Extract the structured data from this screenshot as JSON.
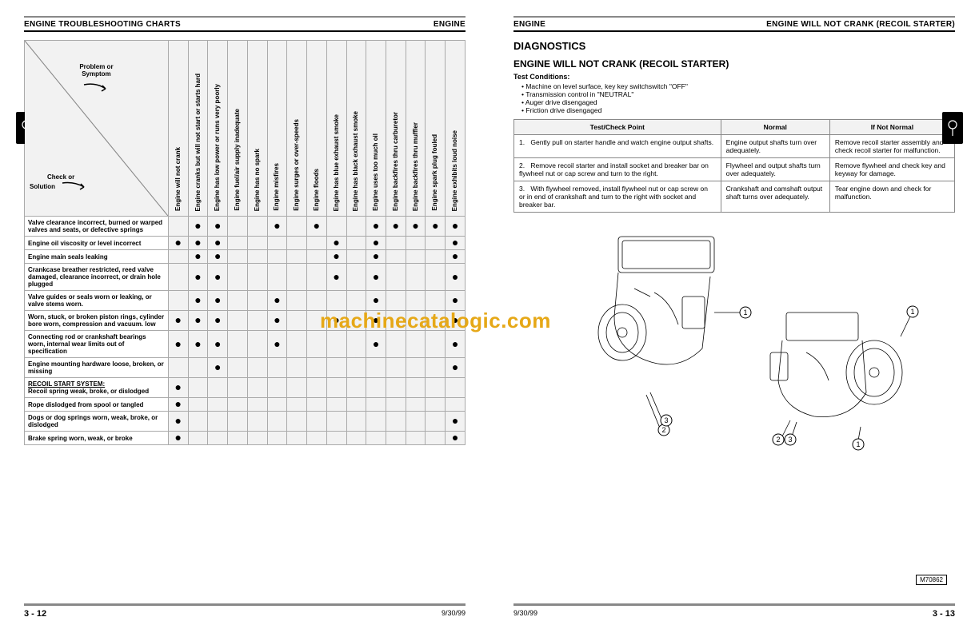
{
  "watermark": "machinecatalogic.com",
  "leftPage": {
    "headerLeft": "ENGINE TROUBLESHOOTING CHARTS",
    "headerRight": "ENGINE",
    "footerPage": "3 - 12",
    "footerDate": "9/30/99",
    "diagTopLabel": "Problem or\nSymptom",
    "diagBottomLabel": "Check or\nSolution",
    "columns": [
      "Engine will not crank",
      "Engine cranks but will not start or starts hard",
      "Engine has low power or runs very poorly",
      "Engine fuel/air supply inadequate",
      "Engine has no spark",
      "Engine misfires",
      "Engine surges or over-speeds",
      "Engine floods",
      "Engine has blue exhaust smoke",
      "Engine has black exhaust smoke",
      "Engine uses too much oil",
      "Engine backfires thru carburetor",
      "Engine backfires thru muffler",
      "Engine spark plug fouled",
      "Engine exhibits loud noise"
    ],
    "rows": [
      {
        "label": "Valve clearance incorrect, burned or warped valves and seats, or defective springs",
        "dots": [
          0,
          1,
          1,
          0,
          0,
          1,
          0,
          1,
          0,
          0,
          1,
          1,
          1,
          1,
          1
        ]
      },
      {
        "label": "Engine oil viscosity or level incorrect",
        "dots": [
          1,
          1,
          1,
          0,
          0,
          0,
          0,
          0,
          1,
          0,
          1,
          0,
          0,
          0,
          1
        ]
      },
      {
        "label": "Engine main seals leaking",
        "dots": [
          0,
          1,
          1,
          0,
          0,
          0,
          0,
          0,
          1,
          0,
          1,
          0,
          0,
          0,
          1
        ]
      },
      {
        "label": "Crankcase breather restricted, reed valve damaged, clearance incorrect, or drain hole plugged",
        "dots": [
          0,
          1,
          1,
          0,
          0,
          0,
          0,
          0,
          1,
          0,
          1,
          0,
          0,
          0,
          1
        ]
      },
      {
        "label": "Valve guides or seals worn or leaking, or valve stems worn.",
        "dots": [
          0,
          1,
          1,
          0,
          0,
          1,
          0,
          0,
          0,
          0,
          1,
          0,
          0,
          0,
          1
        ]
      },
      {
        "label": "Worn, stuck, or broken piston rings, cylinder bore worn, compression and vacuum. low",
        "dots": [
          1,
          1,
          1,
          0,
          0,
          1,
          0,
          0,
          1,
          0,
          1,
          0,
          0,
          0,
          1
        ]
      },
      {
        "label": "Connecting rod or crankshaft bearings worn, internal wear limits out of specification",
        "dots": [
          1,
          1,
          1,
          0,
          0,
          1,
          0,
          0,
          0,
          0,
          1,
          0,
          0,
          0,
          1
        ]
      },
      {
        "label": "Engine mounting hardware loose, broken, or missing",
        "dots": [
          0,
          0,
          1,
          0,
          0,
          0,
          0,
          0,
          0,
          0,
          0,
          0,
          0,
          0,
          1
        ]
      },
      {
        "label": "RECOIL START SYSTEM:\nRecoil spring weak, broke, or dislodged",
        "dots": [
          1,
          0,
          0,
          0,
          0,
          0,
          0,
          0,
          0,
          0,
          0,
          0,
          0,
          0,
          0
        ],
        "underline": true
      },
      {
        "label": "Rope dislodged from spool or tangled",
        "dots": [
          1,
          0,
          0,
          0,
          0,
          0,
          0,
          0,
          0,
          0,
          0,
          0,
          0,
          0,
          0
        ]
      },
      {
        "label": "Dogs or dog springs worn, weak, broke, or dislodged",
        "dots": [
          1,
          0,
          0,
          0,
          0,
          0,
          0,
          0,
          0,
          0,
          0,
          0,
          0,
          0,
          1
        ]
      },
      {
        "label": "Brake spring worn, weak, or broke",
        "dots": [
          1,
          0,
          0,
          0,
          0,
          0,
          0,
          0,
          0,
          0,
          0,
          0,
          0,
          0,
          1
        ]
      }
    ]
  },
  "rightPage": {
    "headerLeft": "ENGINE",
    "headerRight": "ENGINE WILL NOT CRANK (RECOIL STARTER)",
    "footerPage": "3 - 13",
    "footerDate": "9/30/99",
    "sectionTitle": "DIAGNOSTICS",
    "subTitle": "ENGINE WILL NOT CRANK (RECOIL STARTER)",
    "condTitle": "Test Conditions:",
    "conditions": [
      "Machine on level surface, key key switchswitch \"OFF\"",
      "Transmission control in \"NEUTRAL\"",
      "Auger drive disengaged",
      "Friction drive disengaged"
    ],
    "tableHeaders": [
      "Test/Check Point",
      "Normal",
      "If Not Normal"
    ],
    "tableRows": [
      {
        "n": "1.",
        "a": "Gently pull on starter handle and watch engine output shafts.",
        "b": "Engine output shafts turn over adequately.",
        "c": "Remove recoil starter assembly and check recoil starter for malfunction."
      },
      {
        "n": "2.",
        "a": "Remove recoil starter and install socket and breaker bar on flywheel nut or cap screw and turn to the right.",
        "b": "Flywheel and output shafts turn over adequately.",
        "c": "Remove flywheel and check key and keyway for damage."
      },
      {
        "n": "3.",
        "a": "With flywheel removed, install flywheel nut or cap screw on or in end of crankshaft and turn to the right with socket and breaker bar.",
        "b": "Crankshaft and camshaft output shaft turns over adequately.",
        "c": "Tear engine down and check for malfunction."
      }
    ],
    "imageRef": "M70862",
    "callouts": [
      "1",
      "2",
      "3"
    ]
  }
}
